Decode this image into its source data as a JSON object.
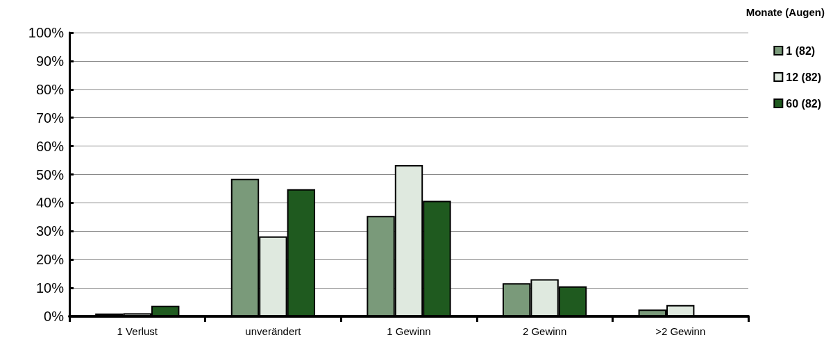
{
  "chart_data": {
    "type": "bar",
    "legend_title": "Monate (Augen)",
    "legend": "right",
    "grid": "y",
    "categories": [
      "1 Verlust",
      "unverändert",
      "1 Gewinn",
      "2 Gewinn",
      ">2 Gewinn"
    ],
    "series": [
      {
        "name": "1 (82)",
        "color": "#7a9a7a",
        "values": [
          1.0,
          48.5,
          35.4,
          11.7,
          2.4
        ]
      },
      {
        "name": "12 (82)",
        "color": "#dfe9df",
        "values": [
          1.1,
          28.2,
          53.3,
          13.1,
          4.0
        ]
      },
      {
        "name": "60 (82)",
        "color": "#1f5a1f",
        "values": [
          3.7,
          44.8,
          40.7,
          10.6,
          null
        ]
      }
    ],
    "ylim": [
      0,
      100
    ],
    "yticks": [
      {
        "value": 0,
        "label": "0%"
      },
      {
        "value": 10,
        "label": "10%"
      },
      {
        "value": 20,
        "label": "20%"
      },
      {
        "value": 30,
        "label": "30%"
      },
      {
        "value": 40,
        "label": "40%"
      },
      {
        "value": 50,
        "label": "50%"
      },
      {
        "value": 60,
        "label": "60%"
      },
      {
        "value": 70,
        "label": "70%"
      },
      {
        "value": 80,
        "label": "80%"
      },
      {
        "value": 90,
        "label": "90%"
      },
      {
        "value": 100,
        "label": "100%"
      }
    ]
  }
}
